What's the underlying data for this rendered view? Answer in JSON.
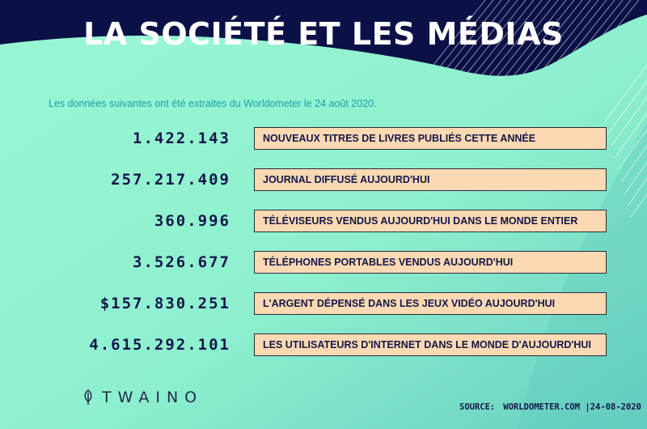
{
  "header": {
    "title": "LA SOCIÉTÉ ET LES MÉDIAS",
    "subtitle": "Les données suivantes ont été extraites du Worldometer le 24 août 2020."
  },
  "stats": [
    {
      "value": "1.422.143",
      "label": "NOUVEAUX TITRES DE LIVRES PUBLIÉS CETTE ANNÉE"
    },
    {
      "value": "257.217.409",
      "label": "JOURNAL DIFFUSÉ AUJOURD'HUI"
    },
    {
      "value": "360.996",
      "label": "TÉLÉVISEURS VENDUS AUJOURD'HUI DANS LE MONDE ENTIER"
    },
    {
      "value": "3.526.677",
      "label": "TÉLÉPHONES PORTABLES VENDUS AUJOURD'HUI"
    },
    {
      "value": "$157.830.251",
      "label": "L'ARGENT DÉPENSÉ DANS LES JEUX VIDÉO AUJOURD'HUI"
    },
    {
      "value": "4.615.292.101",
      "label": "LES UTILISATEURS D'INTERNET DANS LE MONDE D'AUJOURD'HUI"
    }
  ],
  "brand": {
    "name": "TWAINO",
    "icon": "leaf-icon"
  },
  "footer": {
    "source_label": "SOURCE:",
    "source_text": "WORLDOMETER.COM |24-08-2020"
  },
  "colors": {
    "header_navy": "#0b1146",
    "bg_mint": "#8ff3cf",
    "bg_teal": "#6fd4c2",
    "box_fill": "#fbd9b2",
    "text_navy": "#14174a",
    "subtitle_teal": "#1a9ea6"
  }
}
